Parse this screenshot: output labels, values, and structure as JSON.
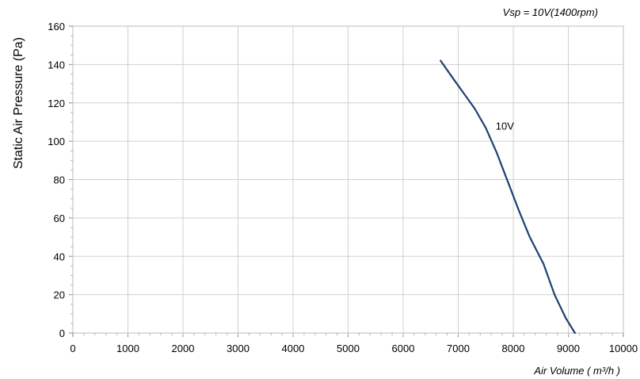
{
  "chart_data": {
    "type": "line",
    "title": "Vsp = 10V(1400rpm)",
    "xlabel": "Air Volume ( m³/h )",
    "ylabel": "Static Air Pressure  (Pa)",
    "xlim": [
      0,
      10000
    ],
    "ylim": [
      0,
      160
    ],
    "x_ticks": [
      0,
      1000,
      2000,
      3000,
      4000,
      5000,
      6000,
      7000,
      8000,
      9000,
      10000
    ],
    "y_ticks": [
      0,
      20,
      40,
      60,
      80,
      100,
      120,
      140,
      160
    ],
    "grid": true,
    "series": [
      {
        "name": "10V",
        "color": "#1f3f73",
        "points": [
          [
            6680,
            142
          ],
          [
            6900,
            133
          ],
          [
            7100,
            125
          ],
          [
            7300,
            117
          ],
          [
            7500,
            107
          ],
          [
            7700,
            94
          ],
          [
            7900,
            79
          ],
          [
            8100,
            64
          ],
          [
            8300,
            50
          ],
          [
            8550,
            36
          ],
          [
            8750,
            20
          ],
          [
            8950,
            8
          ],
          [
            9120,
            0
          ]
        ]
      }
    ]
  }
}
